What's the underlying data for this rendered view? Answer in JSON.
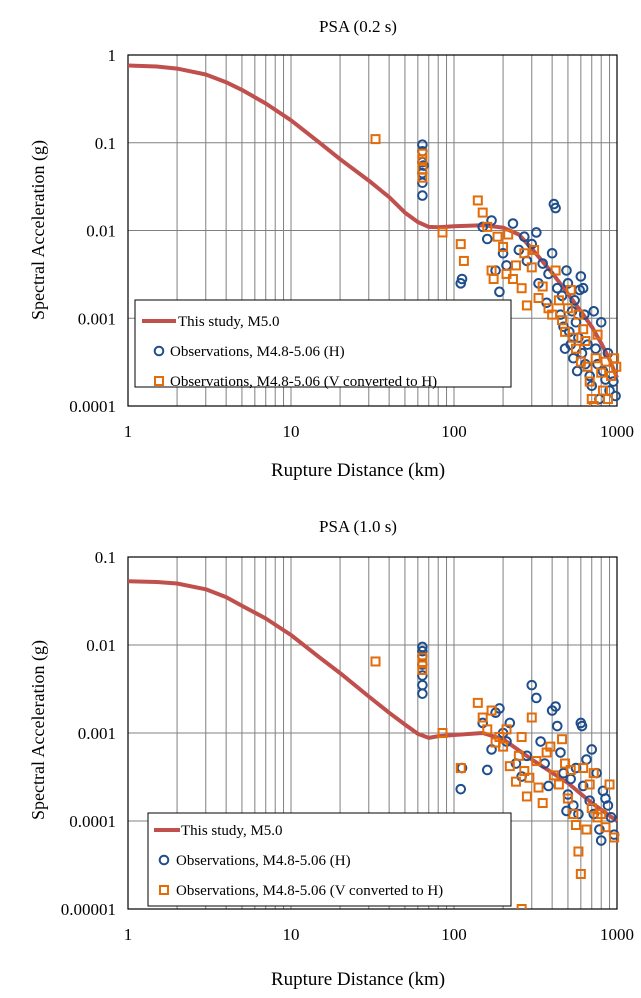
{
  "colors": {
    "model_line": "#c0504d",
    "obs_h": "#1f4e8c",
    "obs_v": "#e36c09",
    "grid": "#808080"
  },
  "chart_data": [
    {
      "type": "scatter",
      "title": "PSA (0.2 s)",
      "xlabel": "Rupture Distance (km)",
      "ylabel": "Spectral Acceleration (g)",
      "x_scale": "log",
      "y_scale": "log",
      "xlim": [
        1,
        1000
      ],
      "ylim": [
        0.0001,
        1
      ],
      "x_ticks": [
        {
          "v": 1,
          "label": "1"
        },
        {
          "v": 10,
          "label": "10"
        },
        {
          "v": 100,
          "label": "100"
        },
        {
          "v": 1000,
          "label": "1000"
        }
      ],
      "y_ticks": [
        {
          "v": 1,
          "label": "1"
        },
        {
          "v": 0.1,
          "label": "0.1"
        },
        {
          "v": 0.01,
          "label": "0.01"
        },
        {
          "v": 0.001,
          "label": "0.001"
        },
        {
          "v": 0.0001,
          "label": "0.0001"
        }
      ],
      "grid": true,
      "legend_position": "bottom-left",
      "series": [
        {
          "name": "This study, M5.0",
          "kind": "line",
          "x": [
            1,
            1.5,
            2,
            3,
            4,
            5,
            7,
            10,
            15,
            20,
            30,
            40,
            50,
            60,
            70,
            80,
            100,
            150,
            200,
            250,
            300,
            400,
            500,
            600,
            700,
            800,
            900,
            1000
          ],
          "y": [
            0.76,
            0.74,
            0.7,
            0.6,
            0.49,
            0.4,
            0.28,
            0.18,
            0.1,
            0.065,
            0.037,
            0.024,
            0.016,
            0.0125,
            0.011,
            0.0109,
            0.0112,
            0.0115,
            0.0108,
            0.009,
            0.0062,
            0.0033,
            0.0019,
            0.0012,
            0.0008,
            0.00052,
            0.00034,
            0.00021
          ]
        },
        {
          "name": "Observations, M4.8-5.06 (H)",
          "kind": "circle",
          "points": [
            [
              64,
              0.095
            ],
            [
              64,
              0.08
            ],
            [
              64,
              0.06
            ],
            [
              64,
              0.045
            ],
            [
              64,
              0.035
            ],
            [
              64,
              0.025
            ],
            [
              65,
              0.055
            ],
            [
              110,
              0.0025
            ],
            [
              112,
              0.0028
            ],
            [
              150,
              0.011
            ],
            [
              160,
              0.008
            ],
            [
              170,
              0.013
            ],
            [
              180,
              0.0035
            ],
            [
              190,
              0.002
            ],
            [
              200,
              0.0055
            ],
            [
              210,
              0.004
            ],
            [
              230,
              0.012
            ],
            [
              250,
              0.006
            ],
            [
              270,
              0.0085
            ],
            [
              280,
              0.0045
            ],
            [
              300,
              0.007
            ],
            [
              320,
              0.0095
            ],
            [
              330,
              0.0025
            ],
            [
              350,
              0.0042
            ],
            [
              370,
              0.0015
            ],
            [
              380,
              0.0032
            ],
            [
              400,
              0.0055
            ],
            [
              410,
              0.02
            ],
            [
              420,
              0.018
            ],
            [
              430,
              0.0022
            ],
            [
              450,
              0.0011
            ],
            [
              460,
              0.0018
            ],
            [
              470,
              0.0008
            ],
            [
              480,
              0.00045
            ],
            [
              490,
              0.0035
            ],
            [
              500,
              0.0025
            ],
            [
              510,
              0.0007
            ],
            [
              520,
              0.0005
            ],
            [
              530,
              0.0012
            ],
            [
              540,
              0.00035
            ],
            [
              550,
              0.0016
            ],
            [
              560,
              0.0009
            ],
            [
              570,
              0.00025
            ],
            [
              580,
              0.0006
            ],
            [
              590,
              0.0021
            ],
            [
              600,
              0.003
            ],
            [
              610,
              0.0004
            ],
            [
              620,
              0.0022
            ],
            [
              630,
              0.0011
            ],
            [
              640,
              0.0003
            ],
            [
              660,
              0.0005
            ],
            [
              680,
              0.00022
            ],
            [
              700,
              0.00017
            ],
            [
              720,
              0.0012
            ],
            [
              740,
              0.00045
            ],
            [
              760,
              0.0003
            ],
            [
              780,
              0.00012
            ],
            [
              800,
              0.0009
            ],
            [
              820,
              0.00025
            ],
            [
              850,
              0.0002
            ],
            [
              880,
              0.0004
            ],
            [
              900,
              0.00015
            ],
            [
              950,
              0.00019
            ],
            [
              980,
              0.00013
            ]
          ]
        },
        {
          "name": "Observations, M4.8-5.06  (V converted to H)",
          "kind": "square",
          "points": [
            [
              33,
              0.11
            ],
            [
              64,
              0.075
            ],
            [
              64,
              0.065
            ],
            [
              64,
              0.05
            ],
            [
              64,
              0.04
            ],
            [
              85,
              0.0095
            ],
            [
              110,
              0.007
            ],
            [
              115,
              0.0045
            ],
            [
              140,
              0.022
            ],
            [
              150,
              0.016
            ],
            [
              160,
              0.011
            ],
            [
              170,
              0.0035
            ],
            [
              175,
              0.0028
            ],
            [
              185,
              0.0085
            ],
            [
              200,
              0.0065
            ],
            [
              210,
              0.0032
            ],
            [
              215,
              0.009
            ],
            [
              230,
              0.0028
            ],
            [
              240,
              0.004
            ],
            [
              260,
              0.0022
            ],
            [
              270,
              0.0055
            ],
            [
              280,
              0.0014
            ],
            [
              300,
              0.0038
            ],
            [
              310,
              0.006
            ],
            [
              330,
              0.0017
            ],
            [
              350,
              0.0023
            ],
            [
              380,
              0.0013
            ],
            [
              400,
              0.0011
            ],
            [
              420,
              0.0035
            ],
            [
              440,
              0.0016
            ],
            [
              460,
              0.00095
            ],
            [
              480,
              0.0007
            ],
            [
              500,
              0.0013
            ],
            [
              520,
              0.0021
            ],
            [
              540,
              0.0006
            ],
            [
              560,
              0.00045
            ],
            [
              580,
              0.0011
            ],
            [
              600,
              0.00032
            ],
            [
              620,
              0.00075
            ],
            [
              640,
              0.00055
            ],
            [
              660,
              0.00028
            ],
            [
              680,
              0.00019
            ],
            [
              700,
              0.00012
            ],
            [
              720,
              0.0001
            ],
            [
              740,
              0.00035
            ],
            [
              760,
              0.00065
            ],
            [
              800,
              0.00024
            ],
            [
              820,
              0.00015
            ],
            [
              850,
              0.00032
            ],
            [
              880,
              0.00012
            ],
            [
              920,
              0.00022
            ],
            [
              960,
              0.00035
            ],
            [
              990,
              0.00028
            ]
          ]
        }
      ]
    },
    {
      "type": "scatter",
      "title": "PSA (1.0 s)",
      "xlabel": "Rupture Distance (km)",
      "ylabel": "Spectral Acceleration (g)",
      "x_scale": "log",
      "y_scale": "log",
      "xlim": [
        1,
        1000
      ],
      "ylim": [
        1e-05,
        0.1
      ],
      "x_ticks": [
        {
          "v": 1,
          "label": "1"
        },
        {
          "v": 10,
          "label": "10"
        },
        {
          "v": 100,
          "label": "100"
        },
        {
          "v": 1000,
          "label": "1000"
        }
      ],
      "y_ticks": [
        {
          "v": 0.1,
          "label": "0.1"
        },
        {
          "v": 0.01,
          "label": "0.01"
        },
        {
          "v": 0.001,
          "label": "0.001"
        },
        {
          "v": 0.0001,
          "label": "0.0001"
        },
        {
          "v": 1e-05,
          "label": "0.00001"
        }
      ],
      "grid": true,
      "legend_position": "bottom-left",
      "series": [
        {
          "name": "This study, M5.0",
          "kind": "line",
          "x": [
            1,
            1.5,
            2,
            3,
            4,
            5,
            7,
            10,
            15,
            20,
            30,
            40,
            50,
            60,
            70,
            80,
            100,
            150,
            200,
            300,
            500,
            700,
            1000
          ],
          "y": [
            0.053,
            0.052,
            0.05,
            0.043,
            0.035,
            0.028,
            0.02,
            0.013,
            0.0072,
            0.0048,
            0.0026,
            0.0017,
            0.00125,
            0.00098,
            0.00088,
            0.00092,
            0.00095,
            0.001,
            0.00085,
            0.0005,
            0.00027,
            0.00016,
            0.0001
          ]
        },
        {
          "name": "Observations, M4.8-5.06 (H)",
          "kind": "circle",
          "points": [
            [
              64,
              0.0095
            ],
            [
              64,
              0.0085
            ],
            [
              64,
              0.0075
            ],
            [
              64,
              0.006
            ],
            [
              64,
              0.0045
            ],
            [
              64,
              0.0035
            ],
            [
              64,
              0.0028
            ],
            [
              110,
              0.00023
            ],
            [
              112,
              0.0004
            ],
            [
              150,
              0.0013
            ],
            [
              160,
              0.00038
            ],
            [
              170,
              0.00065
            ],
            [
              180,
              0.0017
            ],
            [
              190,
              0.0019
            ],
            [
              200,
              0.001
            ],
            [
              210,
              0.0008
            ],
            [
              220,
              0.0013
            ],
            [
              240,
              0.00045
            ],
            [
              260,
              0.00032
            ],
            [
              280,
              0.00055
            ],
            [
              300,
              0.0035
            ],
            [
              320,
              0.0025
            ],
            [
              340,
              0.0008
            ],
            [
              360,
              0.00045
            ],
            [
              380,
              0.00025
            ],
            [
              400,
              0.0018
            ],
            [
              420,
              0.002
            ],
            [
              430,
              0.0012
            ],
            [
              450,
              0.0006
            ],
            [
              470,
              0.00035
            ],
            [
              490,
              0.00013
            ],
            [
              500,
              0.0002
            ],
            [
              520,
              0.0003
            ],
            [
              540,
              0.00015
            ],
            [
              560,
              0.0004
            ],
            [
              580,
              0.00012
            ],
            [
              600,
              0.0013
            ],
            [
              610,
              0.0012
            ],
            [
              620,
              0.00025
            ],
            [
              650,
              0.0005
            ],
            [
              680,
              0.00017
            ],
            [
              700,
              0.00065
            ],
            [
              720,
              0.00012
            ],
            [
              750,
              0.00035
            ],
            [
              780,
              8e-05
            ],
            [
              800,
              6e-05
            ],
            [
              820,
              0.00022
            ],
            [
              850,
              0.00018
            ],
            [
              880,
              0.00015
            ],
            [
              920,
              0.00011
            ],
            [
              960,
              7e-05
            ]
          ]
        },
        {
          "name": "Observations, M4.8-5.06  (V converted to H)",
          "kind": "square",
          "points": [
            [
              33,
              0.0065
            ],
            [
              64,
              0.0072
            ],
            [
              64,
              0.0062
            ],
            [
              64,
              0.0052
            ],
            [
              85,
              0.001
            ],
            [
              110,
              0.0004
            ],
            [
              140,
              0.0022
            ],
            [
              150,
              0.0015
            ],
            [
              160,
              0.0011
            ],
            [
              170,
              0.0018
            ],
            [
              180,
              0.00078
            ],
            [
              190,
              0.0009
            ],
            [
              200,
              0.0007
            ],
            [
              210,
              0.0011
            ],
            [
              220,
              0.00042
            ],
            [
              240,
              0.00028
            ],
            [
              250,
              0.00055
            ],
            [
              260,
              0.0009
            ],
            [
              270,
              0.00037
            ],
            [
              280,
              0.00019
            ],
            [
              290,
              0.00031
            ],
            [
              300,
              0.0015
            ],
            [
              320,
              0.00048
            ],
            [
              330,
              0.00024
            ],
            [
              350,
              0.00016
            ],
            [
              370,
              0.0006
            ],
            [
              390,
              0.0007
            ],
            [
              410,
              0.00033
            ],
            [
              440,
              0.00026
            ],
            [
              460,
              0.00085
            ],
            [
              480,
              0.00045
            ],
            [
              500,
              0.00018
            ],
            [
              520,
              0.00038
            ],
            [
              540,
              0.00012
            ],
            [
              560,
              9e-05
            ],
            [
              580,
              4.5e-05
            ],
            [
              600,
              2.5e-05
            ],
            [
              620,
              0.0004
            ],
            [
              650,
              8e-05
            ],
            [
              680,
              0.00026
            ],
            [
              700,
              0.00014
            ],
            [
              720,
              0.00035
            ],
            [
              760,
              0.00011
            ],
            [
              800,
              0.00012
            ],
            [
              850,
              8.5e-05
            ],
            [
              900,
              0.00026
            ],
            [
              960,
              6.5e-05
            ],
            [
              260,
              1e-05
            ]
          ]
        }
      ]
    }
  ]
}
